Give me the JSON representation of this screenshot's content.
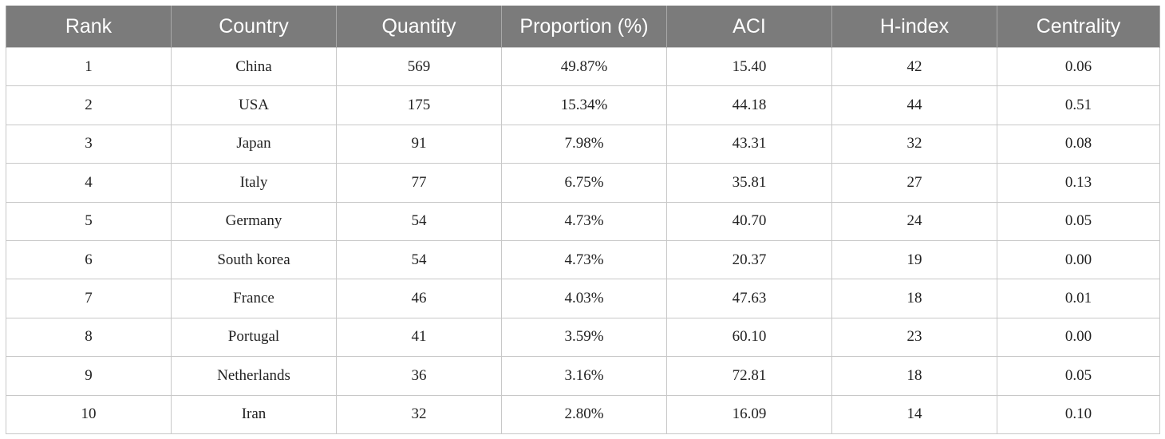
{
  "table": {
    "columns": [
      "Rank",
      "Country",
      "Quantity",
      "Proportion (%)",
      "ACI",
      "H-index",
      "Centrality"
    ],
    "rows": [
      [
        "1",
        "China",
        "569",
        "49.87%",
        "15.40",
        "42",
        "0.06"
      ],
      [
        "2",
        "USA",
        "175",
        "15.34%",
        "44.18",
        "44",
        "0.51"
      ],
      [
        "3",
        "Japan",
        "91",
        "7.98%",
        "43.31",
        "32",
        "0.08"
      ],
      [
        "4",
        "Italy",
        "77",
        "6.75%",
        "35.81",
        "27",
        "0.13"
      ],
      [
        "5",
        "Germany",
        "54",
        "4.73%",
        "40.70",
        "24",
        "0.05"
      ],
      [
        "6",
        "South korea",
        "54",
        "4.73%",
        "20.37",
        "19",
        "0.00"
      ],
      [
        "7",
        "France",
        "46",
        "4.03%",
        "47.63",
        "18",
        "0.01"
      ],
      [
        "8",
        "Portugal",
        "41",
        "3.59%",
        "60.10",
        "23",
        "0.00"
      ],
      [
        "9",
        "Netherlands",
        "36",
        "3.16%",
        "72.81",
        "18",
        "0.05"
      ],
      [
        "10",
        "Iran",
        "32",
        "2.80%",
        "16.09",
        "14",
        "0.10"
      ]
    ],
    "colors": {
      "header_bg": "#7b7b7b",
      "header_text": "#ffffff",
      "border": "#c8c8c8",
      "cell_text": "#222222"
    }
  }
}
